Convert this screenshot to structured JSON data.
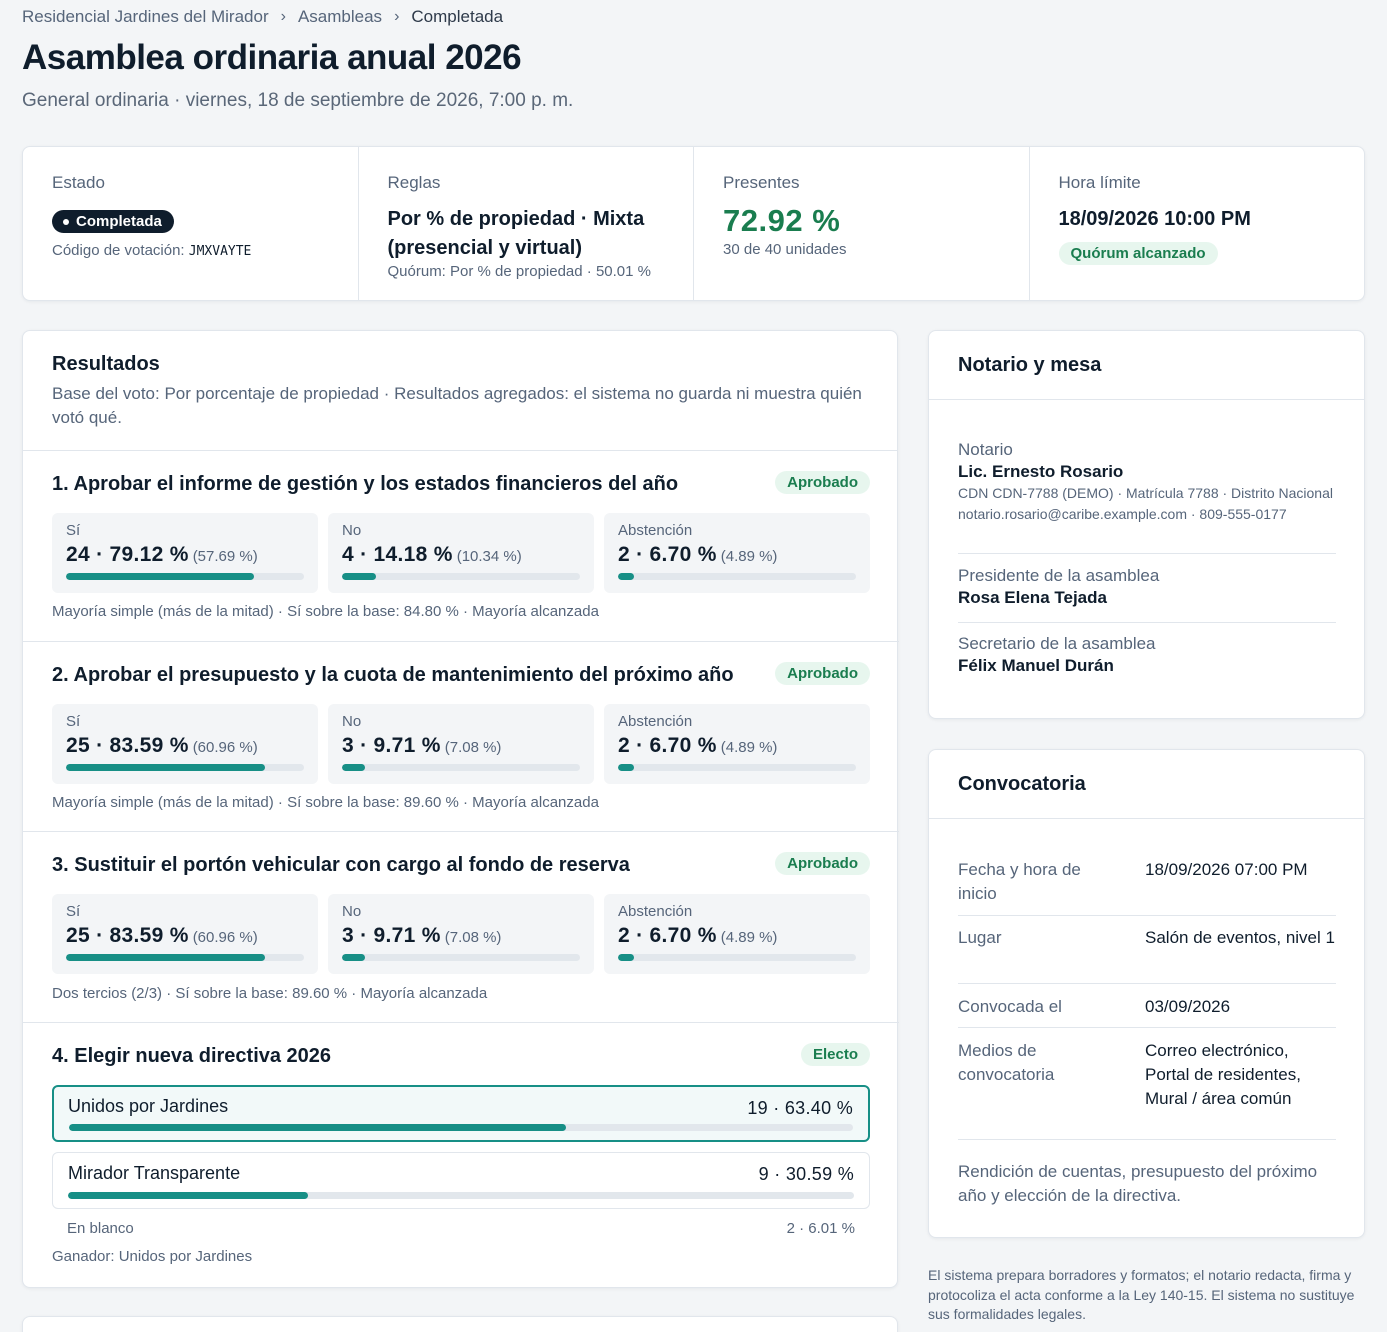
{
  "breadcrumb": {
    "items": [
      "Residencial Jardines del Mirador",
      "Asambleas"
    ],
    "current": "Completada"
  },
  "page": {
    "title": "Asamblea ordinaria anual 2026",
    "subtitle": "General ordinaria · viernes, 18 de septiembre de 2026, 7:00 p. m."
  },
  "stats": {
    "estado": {
      "label": "Estado",
      "badge": "Completada",
      "code_label": "Código de votación:",
      "code": "JMXVAYTE"
    },
    "reglas": {
      "label": "Reglas",
      "value": "Por % de propiedad · Mixta (presencial y virtual)",
      "quorum": "Quórum: Por % de propiedad · 50.01 %"
    },
    "presentes": {
      "label": "Presentes",
      "value": "72.92 %",
      "detail": "30 de 40 unidades"
    },
    "hora": {
      "label": "Hora límite",
      "value": "18/09/2026 10:00 PM",
      "badge": "Quórum alcanzado"
    }
  },
  "results": {
    "title": "Resultados",
    "description": "Base del voto: Por porcentaje de propiedad · Resultados agregados: el sistema no guarda ni muestra quién votó qué.",
    "motions": [
      {
        "title": "1. Aprobar el informe de gestión y los estados financieros del año",
        "status": "Aprobado",
        "options": [
          {
            "label": "Sí",
            "value": "24 · 79.12 %",
            "sub": "(57.69 %)",
            "pct": 79.12
          },
          {
            "label": "No",
            "value": "4 · 14.18 %",
            "sub": "(10.34 %)",
            "pct": 14.18
          },
          {
            "label": "Abstención",
            "value": "2 · 6.70 %",
            "sub": "(4.89 %)",
            "pct": 6.7
          }
        ],
        "note": "Mayoría simple (más de la mitad) · Sí sobre la base: 84.80 % · Mayoría alcanzada"
      },
      {
        "title": "2. Aprobar el presupuesto y la cuota de mantenimiento del próximo año",
        "status": "Aprobado",
        "options": [
          {
            "label": "Sí",
            "value": "25 · 83.59 %",
            "sub": "(60.96 %)",
            "pct": 83.59
          },
          {
            "label": "No",
            "value": "3 · 9.71 %",
            "sub": "(7.08 %)",
            "pct": 9.71
          },
          {
            "label": "Abstención",
            "value": "2 · 6.70 %",
            "sub": "(4.89 %)",
            "pct": 6.7
          }
        ],
        "note": "Mayoría simple (más de la mitad) · Sí sobre la base: 89.60 % · Mayoría alcanzada"
      },
      {
        "title": "3. Sustituir el portón vehicular con cargo al fondo de reserva",
        "status": "Aprobado",
        "options": [
          {
            "label": "Sí",
            "value": "25 · 83.59 %",
            "sub": "(60.96 %)",
            "pct": 83.59
          },
          {
            "label": "No",
            "value": "3 · 9.71 %",
            "sub": "(7.08 %)",
            "pct": 9.71
          },
          {
            "label": "Abstención",
            "value": "2 · 6.70 %",
            "sub": "(4.89 %)",
            "pct": 6.7
          }
        ],
        "note": "Dos tercios (2/3) · Sí sobre la base: 89.60 % · Mayoría alcanzada"
      }
    ],
    "election": {
      "title": "4. Elegir nueva directiva 2026",
      "status": "Electo",
      "candidates": [
        {
          "name": "Unidos por Jardines",
          "value": "19 · 63.40 %",
          "pct": 63.4
        },
        {
          "name": "Mirador Transparente",
          "value": "9 · 30.59 %",
          "pct": 30.59
        }
      ],
      "blank_label": "En blanco",
      "blank_value": "2 · 6.01 %",
      "winner": "Ganador: Unidos por Jardines"
    }
  },
  "notario": {
    "title": "Notario y mesa",
    "notario_label": "Notario",
    "notario_name": "Lic. Ernesto Rosario",
    "notario_meta": "CDN CDN-7788 (DEMO) · Matrícula 7788 · Distrito Nacional",
    "notario_contact": "notario.rosario@caribe.example.com · 809-555-0177",
    "presidente_label": "Presidente de la asamblea",
    "presidente_name": "Rosa Elena Tejada",
    "secretario_label": "Secretario de la asamblea",
    "secretario_name": "Félix Manuel Durán"
  },
  "convocatoria": {
    "title": "Convocatoria",
    "rows": [
      {
        "k": "Fecha y hora de inicio",
        "v": "18/09/2026 07:00 PM"
      },
      {
        "k": "Lugar",
        "v": "Salón de eventos, nivel 1"
      },
      {
        "k": "Convocada el",
        "v": "03/09/2026"
      },
      {
        "k": "Medios de convocatoria",
        "v": "Correo electrónico, Portal de residentes, Mural / área común"
      }
    ],
    "description": "Rendición de cuentas, presupuesto del próximo año y elección de la directiva."
  },
  "footnote": "El sistema prepara borradores y formatos; el notario redacta, firma y protocoliza el acta conforme a la Ley 140-15. El sistema no sustituye sus formalidades legales.",
  "colors": {
    "accent": "#178f86",
    "success": "#1a7d4f",
    "dark": "#0f1d2c"
  }
}
